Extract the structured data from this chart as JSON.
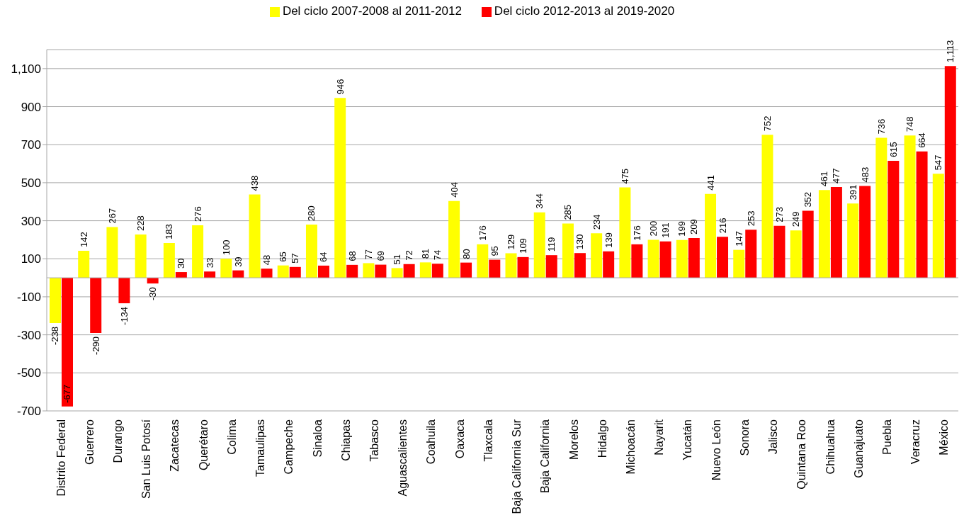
{
  "chart_data": {
    "type": "bar",
    "categories": [
      "Distrito Federal",
      "Guerrero",
      "Durango",
      "San Luis Potosí",
      "Zacatecas",
      "Querétaro",
      "Colima",
      "Tamaulipas",
      "Campeche",
      "Sinaloa",
      "Chiapas",
      "Tabasco",
      "Aguascalientes",
      "Coahuila",
      "Oaxaca",
      "Tlaxcala",
      "Baja California Sur",
      "Baja California",
      "Morelos",
      "Hidalgo",
      "Michoacán",
      "Nayarit",
      "Yucatán",
      "Nuevo León",
      "Sonora",
      "Jalisco",
      "Quintana Roo",
      "Chihuahua",
      "Guanajuato",
      "Puebla",
      "Veracruz",
      "México"
    ],
    "series": [
      {
        "name": "Del ciclo 2007-2008 al 2011-2012",
        "color": "#ffff00",
        "values": [
          -238,
          142,
          267,
          228,
          183,
          276,
          100,
          438,
          65,
          280,
          946,
          77,
          51,
          81,
          404,
          176,
          129,
          344,
          285,
          234,
          475,
          200,
          199,
          441,
          147,
          752,
          249,
          461,
          391,
          736,
          748,
          547
        ],
        "value_labels": [
          "-238",
          "142",
          "267",
          "228",
          "183",
          "276",
          "100",
          "438",
          "65",
          "280",
          "946",
          "77",
          "51",
          "81",
          "404",
          "176",
          "129",
          "344",
          "285",
          "234",
          "475",
          "200",
          "199",
          "441",
          "147",
          "752",
          "249",
          "461",
          "391",
          "736",
          "748",
          "547"
        ]
      },
      {
        "name": "Del ciclo 2012-2013 al 2019-2020",
        "color": "#ff0000",
        "values": [
          -677,
          -290,
          -134,
          -30,
          30,
          33,
          39,
          48,
          57,
          64,
          68,
          69,
          72,
          74,
          80,
          95,
          109,
          119,
          130,
          139,
          176,
          191,
          209,
          216,
          253,
          273,
          352,
          477,
          483,
          615,
          664,
          1113
        ],
        "value_labels": [
          "-677",
          "-290",
          "-134",
          "-30",
          "30",
          "33",
          "39",
          "48",
          "57",
          "64",
          "68",
          "69",
          "72",
          "74",
          "80",
          "95",
          "109",
          "119",
          "130",
          "139",
          "176",
          "191",
          "209",
          "216",
          "253",
          "273",
          "352",
          "477",
          "483",
          "615",
          "664",
          "1,113"
        ]
      }
    ],
    "ylim": [
      -700,
      1200
    ],
    "yticks": [
      -700,
      -500,
      -300,
      -100,
      100,
      300,
      500,
      700,
      900,
      {
        "value": 1100,
        "label": "1,100"
      }
    ],
    "grid": "y",
    "legend": "top"
  }
}
